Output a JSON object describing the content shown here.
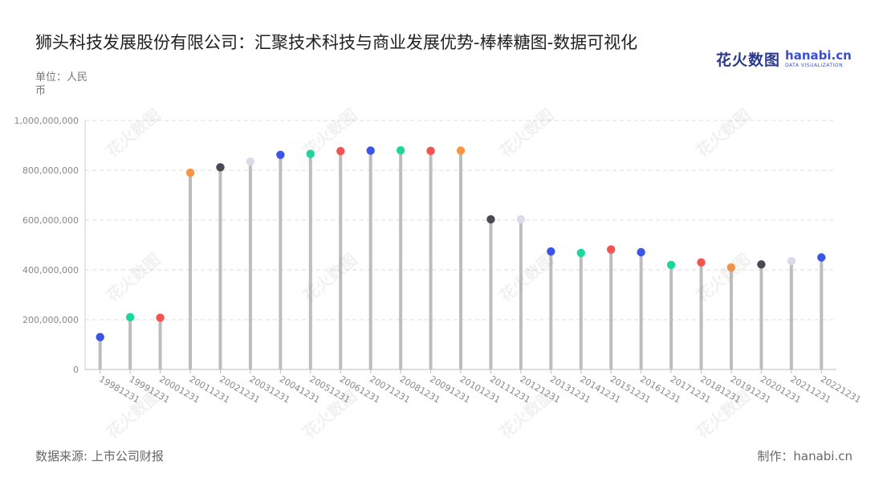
{
  "header": {
    "title": "狮头科技发展股份有限公司：汇聚技术科技与商业发展优势-棒棒糖图-数据可视化",
    "unit": "单位：人民币"
  },
  "brand": {
    "cn": "花火数图",
    "en": "hanabi.cn",
    "sub": "DATA VISUALIZATION"
  },
  "footer": {
    "source": "数据来源: 上市公司财报",
    "credit": "制作：hanabi.cn"
  },
  "chart_data": {
    "type": "lollipop",
    "categories": [
      "19981231",
      "19991231",
      "20001231",
      "20011231",
      "20021231",
      "20031231",
      "20041231",
      "20051231",
      "20061231",
      "20071231",
      "20081231",
      "20091231",
      "20101231",
      "20111231",
      "20121231",
      "20131231",
      "20141231",
      "20151231",
      "20161231",
      "20171231",
      "20181231",
      "20191231",
      "20201231",
      "20211231",
      "20221231"
    ],
    "values": [
      130000000,
      210000000,
      208000000,
      790000000,
      812000000,
      835000000,
      862000000,
      866000000,
      877000000,
      879000000,
      880000000,
      878000000,
      879000000,
      603000000,
      603000000,
      474000000,
      468000000,
      482000000,
      471000000,
      420000000,
      430000000,
      410000000,
      422000000,
      435000000,
      450000000
    ],
    "dot_colors": [
      "#3b55e6",
      "#1ad89a",
      "#f4544f",
      "#f79544",
      "#4a4a55",
      "#d9dce8",
      "#3b55e6",
      "#1ad89a",
      "#f4544f",
      "#3b55e6",
      "#1ad89a",
      "#f4544f",
      "#f79544",
      "#4a4a55",
      "#d9dce8",
      "#3b55e6",
      "#1ad89a",
      "#f4544f",
      "#3b55e6",
      "#1ad89a",
      "#f4544f",
      "#f79544",
      "#4a4a55",
      "#d9dce8",
      "#3b55e6"
    ],
    "stem_color": "#bdbdbd",
    "ylim": [
      0,
      1000000000
    ],
    "yticks": [
      0,
      200000000,
      400000000,
      600000000,
      800000000,
      1000000000
    ],
    "ytick_labels": [
      "0",
      "200,000,000",
      "400,000,000",
      "600,000,000",
      "800,000,000",
      "1,000,000,000"
    ],
    "grid": true,
    "xlabel_rotation": 30
  }
}
